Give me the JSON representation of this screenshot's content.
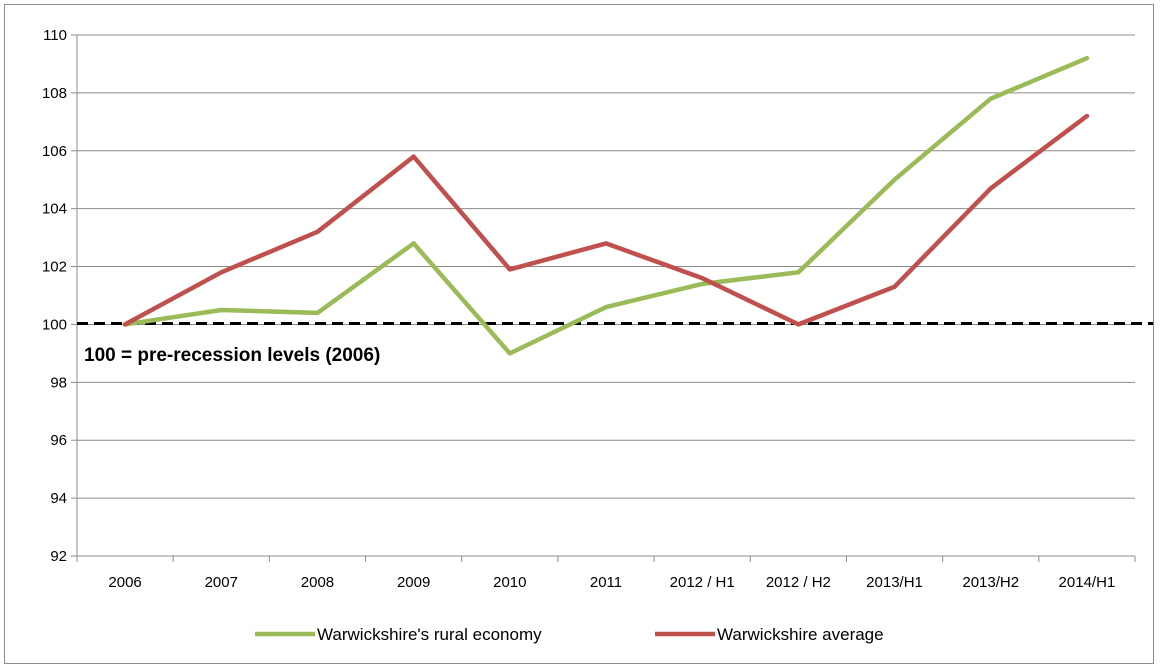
{
  "chart_data": {
    "type": "line",
    "title": "",
    "xlabel": "",
    "ylabel": "",
    "categories": [
      "2006",
      "2007",
      "2008",
      "2009",
      "2010",
      "2011",
      "2012 / H1",
      "2012 / H2",
      "2013/H1",
      "2013/H2",
      "2014/H1"
    ],
    "ylim": [
      92,
      110
    ],
    "yticks": [
      92,
      94,
      96,
      98,
      100,
      102,
      104,
      106,
      108,
      110
    ],
    "grid": true,
    "legend_position": "bottom",
    "series": [
      {
        "name": "Warwickshire's rural economy",
        "color": "#9bbb59",
        "values": [
          100.0,
          100.5,
          100.4,
          102.8,
          99.0,
          100.6,
          101.4,
          101.8,
          105.0,
          107.8,
          109.2
        ]
      },
      {
        "name": "Warwickshire average",
        "color": "#c0504d",
        "values": [
          100.0,
          101.8,
          103.2,
          105.8,
          101.9,
          102.8,
          101.6,
          100.0,
          101.3,
          104.7,
          107.2
        ]
      }
    ],
    "reference_line": {
      "value": 100,
      "style": "dashed",
      "color": "#000000"
    },
    "annotation": "100 = pre-recession levels (2006)"
  }
}
